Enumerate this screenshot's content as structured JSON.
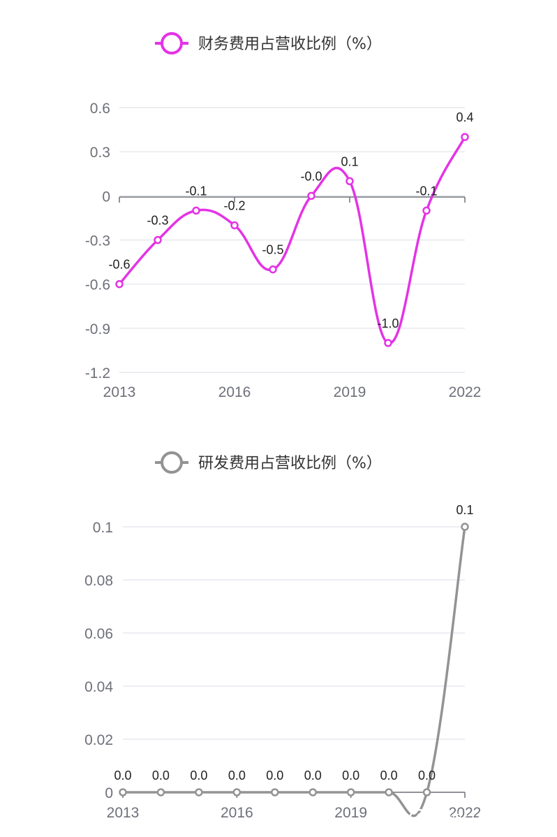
{
  "chart_data": [
    {
      "type": "line",
      "x": [
        "2013",
        "2014",
        "2015",
        "2016",
        "2017",
        "2018",
        "2019",
        "2020",
        "2021",
        "2022"
      ],
      "xticks": [
        "2013",
        "2016",
        "2019",
        "2022"
      ],
      "yticks": [
        "0.6",
        "0.3",
        "0",
        "-0.3",
        "-0.6",
        "-0.9",
        "-1.2"
      ],
      "ylim": [
        -1.2,
        0.6
      ],
      "series": [
        {
          "name": "财务费用占营收比例（%）",
          "values": [
            -0.6,
            -0.3,
            -0.1,
            -0.2,
            -0.5,
            -0.0,
            0.1,
            -1.0,
            -0.1,
            0.4
          ],
          "labels": [
            "-0.6",
            "-0.3",
            "-0.1",
            "-0.2",
            "-0.5",
            "-0.0",
            "0.1",
            "-1.0",
            "-0.1",
            "0.4"
          ],
          "color": "#e433e6"
        }
      ],
      "legend": "top-center",
      "grid": true
    },
    {
      "type": "line",
      "x": [
        "2013",
        "2014",
        "2015",
        "2016",
        "2017",
        "2018",
        "2019",
        "2020",
        "2021",
        "2022"
      ],
      "xticks": [
        "2013",
        "2016",
        "2019",
        "2022"
      ],
      "yticks": [
        "0.1",
        "0.08",
        "0.06",
        "0.04",
        "0.02",
        "0"
      ],
      "ylim": [
        0,
        0.1
      ],
      "series": [
        {
          "name": "研发费用占营收比例（%）",
          "values": [
            0.0,
            0.0,
            0.0,
            0.0,
            0.0,
            0.0,
            0.0,
            0.0,
            0.0,
            0.1
          ],
          "labels": [
            "0.0",
            "0.0",
            "0.0",
            "0.0",
            "0.0",
            "0.0",
            "0.0",
            "0.0",
            "0.0",
            "0.1"
          ],
          "color": "#939393"
        }
      ],
      "legend": "top-center",
      "grid": true
    }
  ],
  "watermark": {
    "text": "雪球：价投问道",
    "icon": "snowball-logo-icon"
  }
}
